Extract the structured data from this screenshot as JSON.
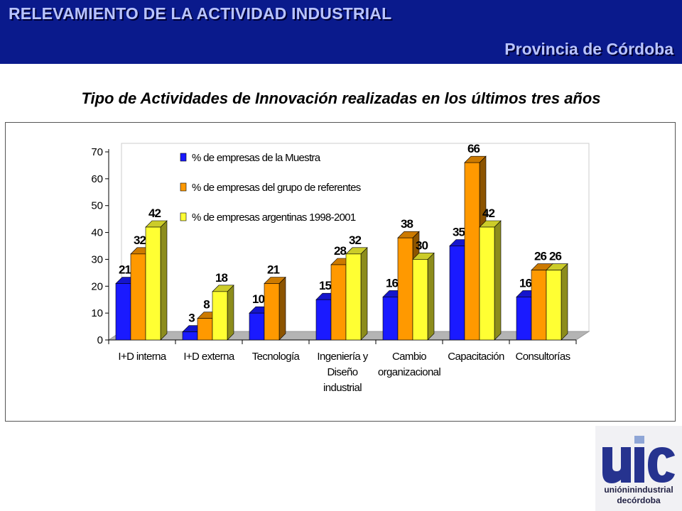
{
  "header": {
    "title": "RELEVAMIENTO DE LA ACTIVIDAD INDUSTRIAL",
    "subtitle": "Provincia de Córdoba"
  },
  "logo": {
    "mark": "uic",
    "line1": "unióninindustrial",
    "line2": "decórdoba"
  },
  "colors": {
    "header_bg": "#0a1a8c",
    "series": [
      "#1a1aff",
      "#ff9900",
      "#ffff33"
    ]
  },
  "chart_data": {
    "type": "bar",
    "title": "Tipo de Actividades de Innovación realizadas en los últimos tres años",
    "categories": [
      "I+D interna",
      "I+D externa",
      "Tecnología",
      "Ingeniería y Diseño industrial",
      "Cambio organizacional",
      "Capacitación",
      "Consultorías"
    ],
    "series": [
      {
        "name": "% de empresas de la Muestra",
        "values": [
          21,
          3,
          10,
          15,
          16,
          35,
          16
        ]
      },
      {
        "name": "% de empresas del grupo de referentes",
        "values": [
          32,
          8,
          21,
          28,
          38,
          66,
          26
        ]
      },
      {
        "name": "% de empresas argentinas 1998-2001",
        "values": [
          42,
          18,
          null,
          32,
          30,
          42,
          26
        ]
      }
    ],
    "ylim": [
      0,
      70
    ],
    "yticks": [
      0,
      10,
      20,
      30,
      40,
      50,
      60,
      70
    ],
    "xlabel": "",
    "ylabel": "",
    "legend_position": "top-left",
    "grid": false,
    "style": "3d"
  }
}
